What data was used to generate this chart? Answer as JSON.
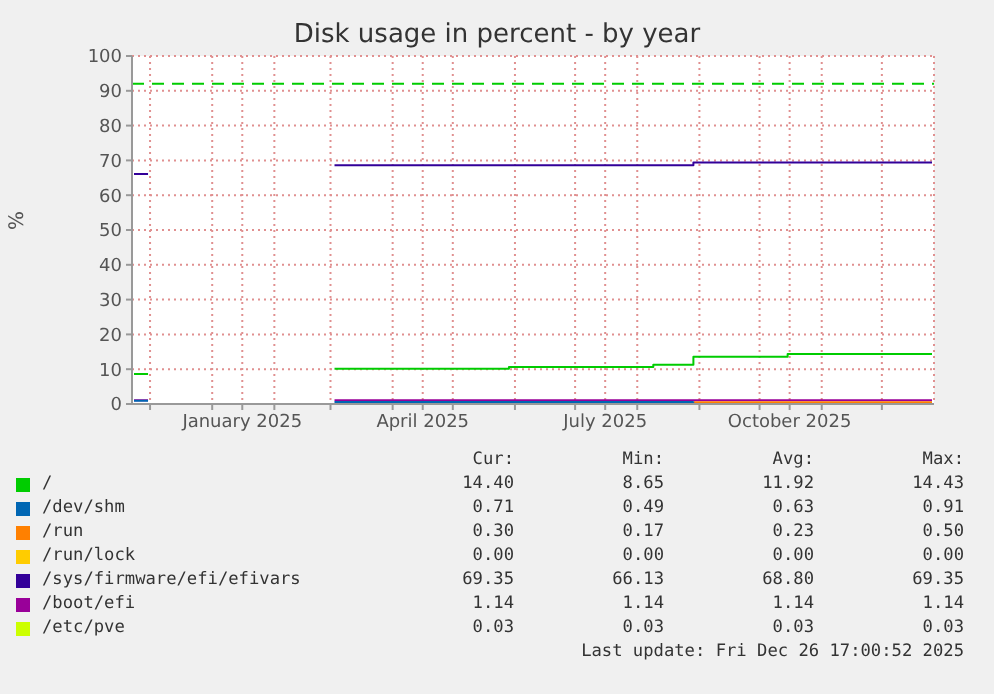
{
  "chart_data": {
    "type": "step",
    "title": "Disk usage in percent - by year",
    "ylabel": "%",
    "x": [
      "2024-11-23",
      "2024-11-30",
      "2025-01-15",
      "2025-03-03",
      "2025-05-29",
      "2025-08-09",
      "2025-08-29",
      "2025-10-15",
      "2025-12-26"
    ],
    "xlim": [
      "2024-11-22",
      "2025-12-27"
    ],
    "xticks": [
      {
        "value": "2024-12-01",
        "label": null
      },
      {
        "value": "2025-01-01",
        "label": null
      },
      {
        "value": "2025-01-16",
        "label": "January 2025"
      },
      {
        "value": "2025-02-01",
        "label": null
      },
      {
        "value": "2025-03-01",
        "label": null
      },
      {
        "value": "2025-04-01",
        "label": null
      },
      {
        "value": "2025-04-16",
        "label": "April 2025"
      },
      {
        "value": "2025-05-01",
        "label": null
      },
      {
        "value": "2025-06-01",
        "label": null
      },
      {
        "value": "2025-07-01",
        "label": null
      },
      {
        "value": "2025-07-16",
        "label": "July 2025"
      },
      {
        "value": "2025-08-01",
        "label": null
      },
      {
        "value": "2025-09-01",
        "label": null
      },
      {
        "value": "2025-10-01",
        "label": null
      },
      {
        "value": "2025-10-16",
        "label": "October 2025"
      },
      {
        "value": "2025-11-01",
        "label": null
      },
      {
        "value": "2025-12-01",
        "label": null
      }
    ],
    "ylim": [
      0,
      100
    ],
    "yticks": [
      0,
      10,
      20,
      30,
      40,
      50,
      60,
      70,
      80,
      90,
      100
    ],
    "grid": true,
    "legend": "bottom",
    "marker": "none",
    "line_style": "solid",
    "ref_lines": [
      {
        "axis": "y",
        "value": 92,
        "color": "#00cc00",
        "line_style": "dashed"
      }
    ],
    "series": [
      {
        "name": "/",
        "color": "#00cc00",
        "values": [
          8.6,
          8.6,
          null,
          10.1,
          10.6,
          11.3,
          13.6,
          14.4,
          14.4
        ]
      },
      {
        "name": "/dev/shm",
        "color": "#0066b3",
        "values": [
          0.9,
          0.9,
          null,
          0.6,
          0.6,
          0.6,
          0.7,
          null,
          null
        ]
      },
      {
        "name": "/run",
        "color": "#ff8000",
        "values": [
          null,
          null,
          null,
          null,
          null,
          null,
          0.5,
          0.5,
          0.5
        ]
      },
      {
        "name": "/run/lock",
        "color": "#ffcc00",
        "values": [
          null,
          null,
          null,
          null,
          null,
          null,
          null,
          null,
          null
        ]
      },
      {
        "name": "/sys/firmware/efi/efivars",
        "color": "#330099",
        "values": [
          66.1,
          66.1,
          null,
          68.6,
          68.6,
          68.6,
          69.4,
          69.4,
          69.4
        ]
      },
      {
        "name": "/boot/efi",
        "color": "#990099",
        "values": [
          1.1,
          1.1,
          null,
          1.1,
          1.1,
          1.1,
          1.1,
          1.1,
          1.1
        ]
      },
      {
        "name": "/etc/pve",
        "color": "#ccff00",
        "values": [
          null,
          null,
          null,
          null,
          null,
          null,
          null,
          null,
          null
        ]
      }
    ],
    "annotations": [
      "Cur:",
      "Min:",
      "Avg:",
      "Max:",
      "14.40",
      "8.65",
      "11.92",
      "14.43",
      "0.71",
      "0.49",
      "0.63",
      "0.91",
      "0.30",
      "0.17",
      "0.23",
      "0.50",
      "0.00",
      "0.00",
      "0.00",
      "0.00",
      "69.35",
      "66.13",
      "68.80",
      "69.35",
      "1.14",
      "1.14",
      "1.14",
      "1.14",
      "0.03",
      "0.03",
      "0.03",
      "0.03",
      "Last update: Fri Dec 26 17:00:52 2025"
    ]
  }
}
